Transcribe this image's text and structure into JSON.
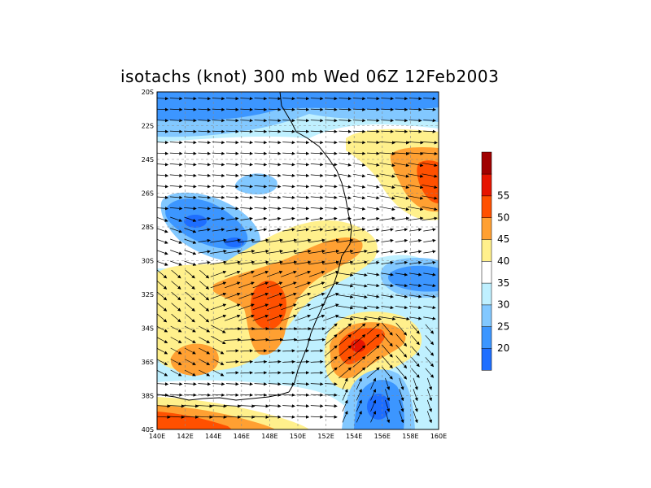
{
  "title": "isotachs (knot) 300 mb Wed 06Z 12Feb2003",
  "map": {
    "lon_ticks": [
      "140E",
      "142E",
      "144E",
      "146E",
      "148E",
      "150E",
      "152E",
      "154E",
      "156E",
      "158E",
      "160E"
    ],
    "lat_ticks": [
      "20S",
      "22S",
      "24S",
      "26S",
      "28S",
      "30S",
      "32S",
      "34S",
      "36S",
      "38S",
      "40S"
    ],
    "lon_range": [
      140,
      160
    ],
    "lat_range": [
      -40,
      -20
    ]
  },
  "colorbar": {
    "labels": [
      "20",
      "25",
      "30",
      "35",
      "40",
      "45",
      "50",
      "55"
    ],
    "colors": [
      "#1e6eff",
      "#3c96ff",
      "#82c8ff",
      "#bff0ff",
      "#ffffff",
      "#fff08c",
      "#ffa032",
      "#ff5000",
      "#e61400",
      "#a00000"
    ]
  }
}
